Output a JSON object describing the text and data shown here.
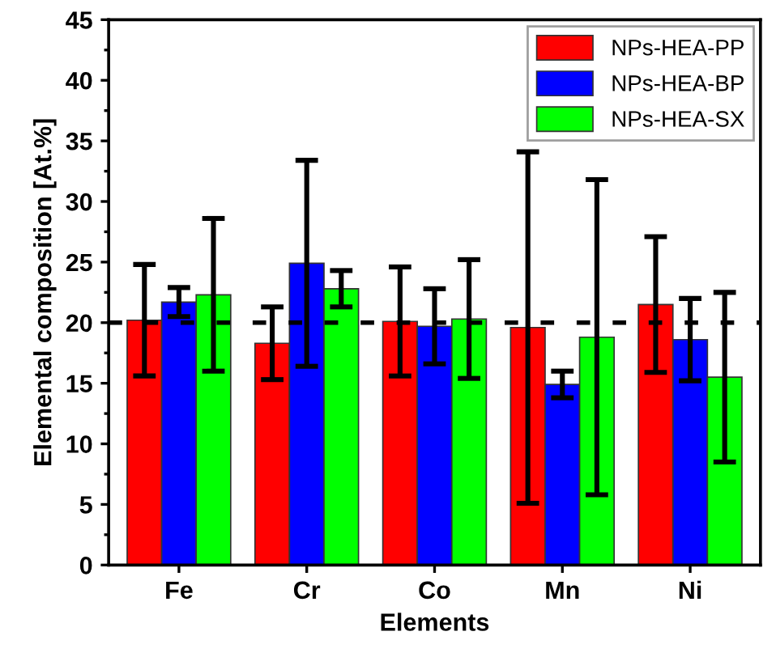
{
  "chart_data": {
    "type": "bar",
    "xlabel": "Elements",
    "ylabel": "Elemental composition [At.%]",
    "categories": [
      "Fe",
      "Cr",
      "Co",
      "Mn",
      "Ni"
    ],
    "series": [
      {
        "name": "NPs-HEA-PP",
        "color": "#ff0000",
        "values": [
          20.2,
          18.3,
          20.1,
          19.6,
          21.5
        ],
        "errors": [
          4.6,
          3.0,
          4.5,
          14.5,
          5.6
        ]
      },
      {
        "name": "NPs-HEA-BP",
        "color": "#0000ff",
        "values": [
          21.7,
          24.9,
          19.7,
          14.9,
          18.6
        ],
        "errors": [
          1.2,
          8.5,
          3.1,
          1.1,
          3.4
        ]
      },
      {
        "name": "NPs-HEA-SX",
        "color": "#00ff00",
        "values": [
          22.3,
          22.8,
          20.3,
          18.8,
          15.5
        ],
        "errors": [
          6.3,
          1.5,
          4.9,
          13.0,
          7.0
        ]
      }
    ],
    "ylim": [
      0,
      45
    ],
    "yticks": [
      0,
      5,
      10,
      15,
      20,
      25,
      30,
      35,
      40,
      45
    ],
    "ref_lines": [
      {
        "axis": "y",
        "value": 20,
        "color": "#000000",
        "line_style": "dashed"
      }
    ],
    "legend": "top right",
    "grid": false
  }
}
